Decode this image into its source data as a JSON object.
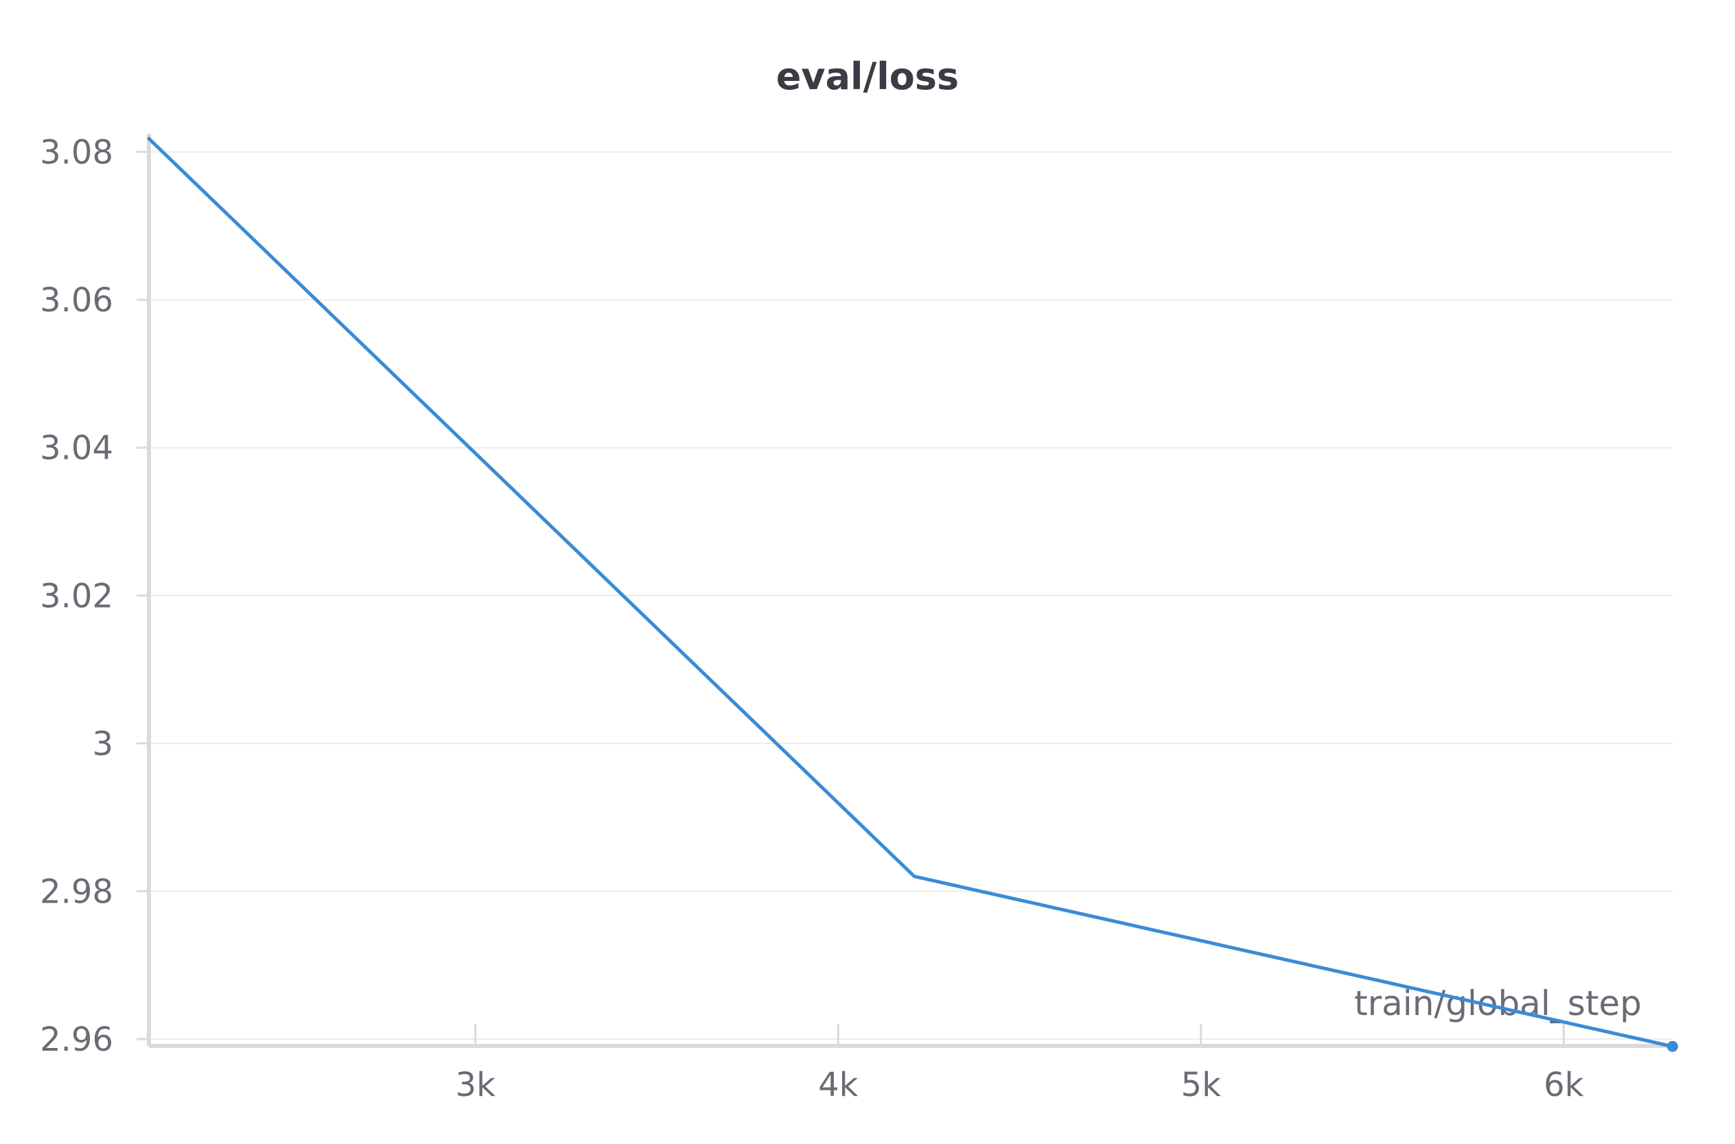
{
  "chart_data": {
    "type": "line",
    "title": "eval/loss",
    "xlabel": "train/global_step",
    "ylabel": "",
    "x_ticks": [
      {
        "value": 3000,
        "label": "3k"
      },
      {
        "value": 4000,
        "label": "4k"
      },
      {
        "value": 5000,
        "label": "5k"
      },
      {
        "value": 6000,
        "label": "6k"
      }
    ],
    "y_ticks": [
      {
        "value": 2.96,
        "label": "2.96"
      },
      {
        "value": 2.98,
        "label": "2.98"
      },
      {
        "value": 3.0,
        "label": "3"
      },
      {
        "value": 3.02,
        "label": "3.02"
      },
      {
        "value": 3.04,
        "label": "3.04"
      },
      {
        "value": 3.06,
        "label": "3.06"
      },
      {
        "value": 3.08,
        "label": "3.08"
      }
    ],
    "xlim": [
      2100,
      6300
    ],
    "ylim": [
      2.96,
      3.082
    ],
    "grid": true,
    "series": [
      {
        "color": "#3a8bd6",
        "points": [
          {
            "x": 2100,
            "y": 3.0818
          },
          {
            "x": 4210,
            "y": 2.982
          },
          {
            "x": 6300,
            "y": 2.959
          }
        ]
      }
    ]
  }
}
